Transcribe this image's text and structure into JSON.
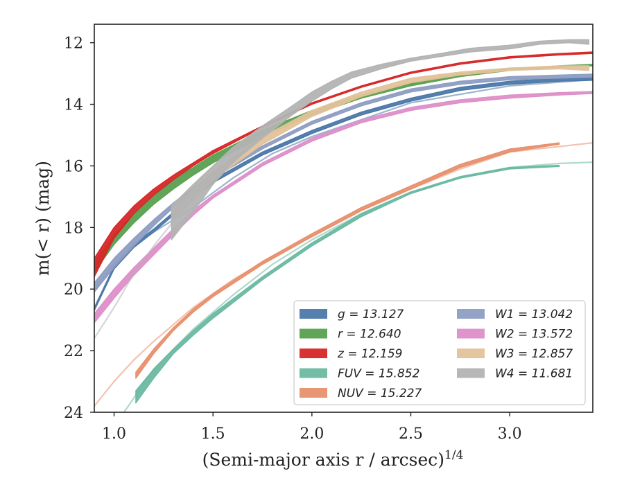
{
  "chart_data": {
    "type": "line",
    "xlabel": "(Semi-major axis r / arcsec)",
    "xlabel_sup": "1/4",
    "ylabel": "m(< r) (mag)",
    "xlim": [
      0.9,
      3.42
    ],
    "ylim": [
      24,
      11.4
    ],
    "y_inverted": true,
    "xticks": [
      1.0,
      1.5,
      2.0,
      2.5,
      3.0
    ],
    "xtick_labels": [
      "1.0",
      "1.5",
      "2.0",
      "2.5",
      "3.0"
    ],
    "yticks": [
      12,
      14,
      16,
      18,
      20,
      22,
      24
    ],
    "ytick_labels": [
      "12",
      "14",
      "16",
      "18",
      "20",
      "22",
      "24"
    ],
    "grid": false,
    "legend_position": "lower-right",
    "series": [
      {
        "name": "g = 13.127",
        "color": "#4c78a8",
        "x": [
          0.9,
          1.0,
          1.1,
          1.2,
          1.3,
          1.4,
          1.5,
          1.75,
          2.0,
          2.25,
          2.5,
          2.75,
          3.0,
          3.25,
          3.42
        ],
        "y": [
          20.7,
          19.35,
          18.65,
          18.15,
          17.6,
          17.05,
          16.55,
          15.65,
          14.95,
          14.35,
          13.9,
          13.55,
          13.35,
          13.25,
          13.22
        ],
        "y_lower": [
          20.6,
          19.25,
          18.55,
          18.05,
          17.5,
          16.95,
          16.45,
          15.55,
          14.85,
          14.25,
          13.8,
          13.45,
          13.25,
          13.15,
          13.12
        ],
        "x_secondary": [
          0.9,
          1.0,
          1.1,
          1.2,
          1.4,
          1.6,
          1.8,
          2.0,
          2.5,
          3.0,
          3.42
        ],
        "y_secondary": [
          20.0,
          19.2,
          18.6,
          18.15,
          17.35,
          16.4,
          15.6,
          15.05,
          13.95,
          13.4,
          13.2
        ]
      },
      {
        "name": "r = 12.640",
        "color": "#59a14f",
        "x": [
          0.9,
          1.0,
          1.1,
          1.2,
          1.3,
          1.4,
          1.5,
          1.75,
          2.0,
          2.25,
          2.5,
          2.75,
          3.0,
          3.25,
          3.42
        ],
        "y": [
          19.45,
          18.55,
          17.85,
          17.25,
          16.75,
          16.3,
          15.9,
          15.05,
          14.35,
          13.8,
          13.4,
          13.1,
          12.9,
          12.8,
          12.75
        ],
        "y_lower": [
          19.15,
          18.25,
          17.55,
          16.95,
          16.45,
          16.05,
          15.65,
          14.85,
          14.2,
          13.7,
          13.3,
          13.0,
          12.85,
          12.75,
          12.7
        ]
      },
      {
        "name": "z = 12.159",
        "color": "#d62728",
        "x": [
          0.9,
          1.0,
          1.1,
          1.2,
          1.3,
          1.4,
          1.5,
          1.75,
          2.0,
          2.25,
          2.5,
          2.75,
          3.0,
          3.25,
          3.42
        ],
        "y": [
          19.6,
          18.35,
          17.55,
          16.95,
          16.45,
          16.0,
          15.6,
          14.75,
          14.0,
          13.45,
          13.0,
          12.7,
          12.5,
          12.4,
          12.35
        ],
        "y_lower": [
          19.0,
          18.0,
          17.3,
          16.75,
          16.3,
          15.9,
          15.5,
          14.7,
          13.95,
          13.4,
          12.95,
          12.65,
          12.45,
          12.35,
          12.3
        ]
      },
      {
        "name": "FUV = 15.852",
        "color": "#6bb9a2",
        "x": [
          1.11,
          1.2,
          1.3,
          1.4,
          1.5,
          1.75,
          2.0,
          2.25,
          2.5,
          2.75,
          3.0,
          3.25
        ],
        "y": [
          23.7,
          22.9,
          22.1,
          21.5,
          20.95,
          19.7,
          18.6,
          17.65,
          16.9,
          16.4,
          16.1,
          16.02
        ],
        "y_lower": [
          23.3,
          22.6,
          21.95,
          21.35,
          20.8,
          19.6,
          18.5,
          17.55,
          16.85,
          16.35,
          16.05,
          15.98
        ],
        "x_secondary": [
          1.05,
          1.2,
          1.4,
          1.6,
          1.8,
          2.0,
          2.25,
          2.5,
          2.75,
          3.0,
          3.25,
          3.42
        ],
        "y_secondary": [
          24.0,
          22.6,
          21.3,
          20.2,
          19.2,
          18.4,
          17.55,
          16.85,
          16.35,
          16.05,
          15.92,
          15.88
        ]
      },
      {
        "name": "NUV = 15.227",
        "color": "#e8906d",
        "x": [
          1.11,
          1.2,
          1.3,
          1.4,
          1.5,
          1.75,
          2.0,
          2.25,
          2.5,
          2.75,
          3.0,
          3.25
        ],
        "y": [
          22.9,
          22.1,
          21.35,
          20.75,
          20.25,
          19.2,
          18.3,
          17.45,
          16.75,
          16.05,
          15.55,
          15.3
        ],
        "y_lower": [
          22.7,
          21.95,
          21.25,
          20.65,
          20.15,
          19.1,
          18.2,
          17.35,
          16.65,
          15.95,
          15.45,
          15.25
        ],
        "x_secondary": [
          0.9,
          1.0,
          1.1,
          1.2,
          1.4,
          1.6,
          1.8,
          2.0,
          2.25,
          2.5,
          2.75,
          3.0,
          3.42
        ],
        "y_secondary": [
          23.8,
          23.0,
          22.3,
          21.7,
          20.6,
          19.7,
          18.95,
          18.3,
          17.45,
          16.75,
          16.1,
          15.55,
          15.25
        ]
      },
      {
        "name": "W1 = 13.042",
        "color": "#8e9dc2",
        "x": [
          0.9,
          1.0,
          1.1,
          1.2,
          1.3,
          1.4,
          1.5,
          1.75,
          2.0,
          2.25,
          2.5,
          2.75,
          3.0,
          3.25,
          3.42
        ],
        "y": [
          20.1,
          19.3,
          18.6,
          17.95,
          17.35,
          16.85,
          16.4,
          15.45,
          14.65,
          14.05,
          13.6,
          13.35,
          13.2,
          13.15,
          13.12
        ],
        "y_lower": [
          19.8,
          19.0,
          18.35,
          17.75,
          17.2,
          16.7,
          16.3,
          15.35,
          14.55,
          13.95,
          13.5,
          13.25,
          13.1,
          13.05,
          13.02
        ]
      },
      {
        "name": "W2 = 13.572",
        "color": "#dd8fc8",
        "x": [
          0.9,
          1.0,
          1.1,
          1.29,
          1.4,
          1.5,
          1.75,
          2.0,
          2.25,
          2.5,
          2.75,
          3.0,
          3.25,
          3.42
        ],
        "y": [
          21.1,
          20.3,
          19.55,
          18.3,
          17.6,
          17.05,
          16.0,
          15.2,
          14.6,
          14.2,
          13.95,
          13.8,
          13.7,
          13.65
        ],
        "y_lower": [
          20.8,
          20.0,
          19.3,
          18.1,
          17.45,
          16.95,
          15.9,
          15.1,
          14.5,
          14.1,
          13.85,
          13.7,
          13.62,
          13.58
        ]
      },
      {
        "name": "W3 = 12.857",
        "color": "#e3c29a",
        "x": [
          1.29,
          1.4,
          1.5,
          1.75,
          2.0,
          2.25,
          2.5,
          2.75,
          3.0,
          3.25,
          3.4
        ],
        "y": [
          17.8,
          17.1,
          16.45,
          15.3,
          14.4,
          13.75,
          13.3,
          13.05,
          12.9,
          12.85,
          12.9
        ],
        "y_lower": [
          17.5,
          16.8,
          16.2,
          15.05,
          14.2,
          13.6,
          13.15,
          12.95,
          12.82,
          12.75,
          12.75
        ]
      },
      {
        "name": "W4 = 11.681",
        "color": "#b3b3b3",
        "x": [
          1.29,
          1.4,
          1.5,
          1.6,
          1.75,
          1.9,
          2.0,
          2.1,
          2.2,
          2.35,
          2.5,
          2.65,
          2.8,
          3.0,
          3.15,
          3.3,
          3.4
        ],
        "y": [
          18.4,
          17.5,
          16.6,
          15.9,
          15.1,
          14.35,
          13.9,
          13.5,
          13.15,
          12.85,
          12.6,
          12.45,
          12.3,
          12.2,
          12.05,
          12.0,
          12.05
        ],
        "y_lower": [
          17.3,
          16.6,
          16.0,
          15.4,
          14.7,
          14.05,
          13.6,
          13.25,
          12.95,
          12.7,
          12.5,
          12.35,
          12.18,
          12.08,
          11.95,
          11.9,
          11.9
        ],
        "x_secondary": [
          0.9,
          1.0,
          1.1,
          1.2,
          1.3
        ],
        "y_secondary": [
          21.6,
          20.6,
          19.5,
          18.6,
          17.8
        ]
      }
    ]
  }
}
